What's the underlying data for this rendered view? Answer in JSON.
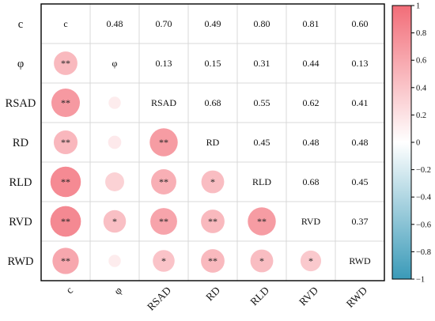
{
  "chart_data": {
    "type": "heatmap",
    "subtype": "correlation-matrix (upper: coefficient text, lower: circles sized/colored by correlation, with significance stars)",
    "variables": [
      "c",
      "φ",
      "RSAD",
      "RD",
      "RLD",
      "RVD",
      "RWD"
    ],
    "upper_values": [
      [
        null,
        0.48,
        0.7,
        0.49,
        0.8,
        0.81,
        0.6
      ],
      [
        null,
        null,
        0.13,
        0.15,
        0.31,
        0.44,
        0.13
      ],
      [
        null,
        null,
        null,
        0.68,
        0.55,
        0.62,
        0.41
      ],
      [
        null,
        null,
        null,
        null,
        0.45,
        0.48,
        0.48
      ],
      [
        null,
        null,
        null,
        null,
        null,
        0.68,
        0.45
      ],
      [
        null,
        null,
        null,
        null,
        null,
        null,
        0.37
      ],
      [
        null,
        null,
        null,
        null,
        null,
        null,
        null
      ]
    ],
    "upper_labels": [
      [
        null,
        "0.48",
        "0.70",
        "0.49",
        "0.80",
        "0.81",
        "0.60"
      ],
      [
        null,
        null,
        "0.13",
        "0.15",
        "0.31",
        "0.44",
        "0.13"
      ],
      [
        null,
        null,
        null,
        "0.68",
        "0.55",
        "0.62",
        "0.41"
      ],
      [
        null,
        null,
        null,
        null,
        "0.45",
        "0.48",
        "0.48"
      ],
      [
        null,
        null,
        null,
        null,
        null,
        "0.68",
        "0.45"
      ],
      [
        null,
        null,
        null,
        null,
        null,
        null,
        "0.37"
      ],
      [
        null,
        null,
        null,
        null,
        null,
        null,
        null
      ]
    ],
    "significance": [
      [
        null,
        null,
        null,
        null,
        null,
        null,
        null
      ],
      [
        "**",
        null,
        null,
        null,
        null,
        null,
        null
      ],
      [
        "**",
        "",
        null,
        null,
        null,
        null,
        null
      ],
      [
        "**",
        "",
        "**",
        null,
        null,
        null,
        null
      ],
      [
        "**",
        "",
        "**",
        "*",
        null,
        null,
        null
      ],
      [
        "**",
        "*",
        "**",
        "**",
        "**",
        null,
        null
      ],
      [
        "**",
        "",
        "*",
        "**",
        "*",
        "*",
        null
      ]
    ],
    "colorbar": {
      "range": [
        -1,
        1
      ],
      "ticks": [
        "1",
        "0.8",
        "0.6",
        "0.4",
        "0.2",
        "0",
        "−0.2",
        "−0.4",
        "−0.6",
        "−0.8",
        "−1"
      ],
      "tick_values": [
        1,
        0.8,
        0.6,
        0.4,
        0.2,
        0,
        -0.2,
        -0.4,
        -0.6,
        -0.8,
        -1
      ],
      "colors": {
        "positive": "#f26d78",
        "zero": "#ffffff",
        "negative": "#3a9ab8"
      }
    }
  }
}
